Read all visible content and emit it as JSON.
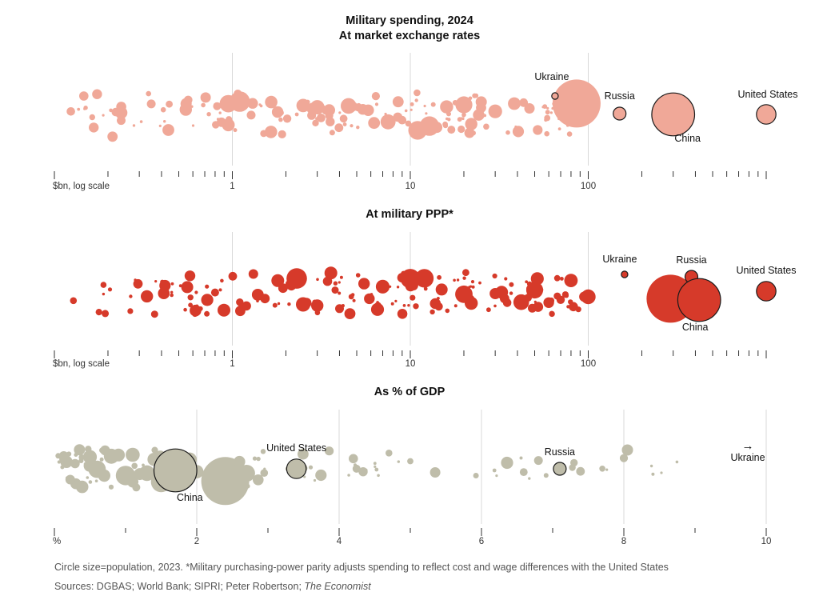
{
  "chart_data": [
    {
      "type": "scatter",
      "title": "Military spending, 2024",
      "subtitle": "At market exchange rates",
      "axis_label": "$bn, log scale",
      "scale": "log",
      "xlim": [
        0.1,
        1000
      ],
      "ticks": [
        {
          "value": 1,
          "label": "1"
        },
        {
          "value": 10,
          "label": "10"
        },
        {
          "value": 100,
          "label": "100"
        }
      ],
      "color": "#f0a898",
      "labelled": [
        {
          "name": "Ukraine",
          "value": 65,
          "population_m": 37
        },
        {
          "name": "Russia",
          "value": 150,
          "population_m": 144
        },
        {
          "name": "China",
          "value": 300,
          "population_m": 1410
        },
        {
          "name": "United States",
          "value": 1000,
          "population_m": 335
        }
      ],
      "others": [
        {
          "value": 86,
          "population_m": 1430
        },
        {
          "value": 1.1,
          "population_m": 220
        },
        {
          "value": 0.95,
          "population_m": 160
        },
        {
          "value": 12.8,
          "population_m": 200
        },
        {
          "value": 11,
          "population_m": 185
        },
        {
          "value": 20,
          "population_m": 150
        },
        {
          "value": 4.5,
          "population_m": 130
        },
        {
          "value": 7.5,
          "population_m": 120
        },
        {
          "value": 3.0,
          "population_m": 110
        },
        {
          "value": 30,
          "population_m": 100
        },
        {
          "value": 2.5,
          "population_m": 95
        },
        {
          "value": 16,
          "population_m": 90
        },
        {
          "value": 0.95,
          "population_m": 85
        },
        {
          "value": 22,
          "population_m": 80
        },
        {
          "value": 5.8,
          "population_m": 70
        },
        {
          "value": 0.55,
          "population_m": 66
        },
        {
          "value": 1.3,
          "population_m": 60
        },
        {
          "value": 25,
          "population_m": 55
        },
        {
          "value": 52,
          "population_m": 50
        },
        {
          "value": 8.5,
          "population_m": 45
        },
        {
          "value": 0.35,
          "population_m": 40
        },
        {
          "value": 9,
          "population_m": 38
        },
        {
          "value": 3.5,
          "population_m": 35
        },
        {
          "value": 17,
          "population_m": 33
        },
        {
          "value": 90,
          "population_m": 30
        }
      ]
    },
    {
      "type": "scatter",
      "title": "At military PPP*",
      "axis_label": "$bn, log scale",
      "scale": "log",
      "xlim": [
        0.1,
        1000
      ],
      "ticks": [
        {
          "value": 1,
          "label": "1"
        },
        {
          "value": 10,
          "label": "10"
        },
        {
          "value": 100,
          "label": "100"
        }
      ],
      "color": "#d63a2a",
      "labelled": [
        {
          "name": "Ukraine",
          "value": 160,
          "population_m": 37
        },
        {
          "name": "Russia",
          "value": 380,
          "population_m": 144
        },
        {
          "name": "United States",
          "value": 1000,
          "population_m": 335
        },
        {
          "name": "China",
          "value": 420,
          "population_m": 1410
        }
      ],
      "others": [
        {
          "value": 290,
          "population_m": 1430
        },
        {
          "value": 2.3,
          "population_m": 220
        },
        {
          "value": 10,
          "population_m": 200
        },
        {
          "value": 12,
          "population_m": 180
        },
        {
          "value": 20,
          "population_m": 160
        },
        {
          "value": 50,
          "population_m": 150
        },
        {
          "value": 42,
          "population_m": 130
        },
        {
          "value": 100,
          "population_m": 115
        },
        {
          "value": 2.5,
          "population_m": 110
        },
        {
          "value": 7,
          "population_m": 100
        },
        {
          "value": 80,
          "population_m": 95
        },
        {
          "value": 22,
          "population_m": 90
        },
        {
          "value": 1.8,
          "population_m": 85
        },
        {
          "value": 3,
          "population_m": 80
        },
        {
          "value": 15,
          "population_m": 75
        },
        {
          "value": 5.5,
          "population_m": 70
        },
        {
          "value": 30,
          "population_m": 65
        },
        {
          "value": 60,
          "population_m": 60
        },
        {
          "value": 95,
          "population_m": 55
        },
        {
          "value": 9,
          "population_m": 50
        },
        {
          "value": 1.2,
          "population_m": 45
        },
        {
          "value": 4,
          "population_m": 40
        },
        {
          "value": 35,
          "population_m": 38
        },
        {
          "value": 70,
          "population_m": 36
        },
        {
          "value": 0.8,
          "population_m": 34
        }
      ]
    },
    {
      "type": "scatter",
      "title": "As % of GDP",
      "axis_label": "%",
      "scale": "linear",
      "xlim": [
        0,
        10
      ],
      "ticks": [
        {
          "value": 2,
          "label": "2"
        },
        {
          "value": 4,
          "label": "4"
        },
        {
          "value": 6,
          "label": "6"
        },
        {
          "value": 8,
          "label": "8"
        },
        {
          "value": 10,
          "label": "10"
        }
      ],
      "color": "#bfbdaa",
      "labelled": [
        {
          "name": "United States",
          "value": 3.4,
          "population_m": 335
        },
        {
          "name": "China",
          "value": 1.7,
          "population_m": 1410
        },
        {
          "name": "Russia",
          "value": 7.1,
          "population_m": 144
        },
        {
          "name": "Ukraine",
          "value": 34,
          "population_m": 37,
          "offscale": true
        }
      ],
      "others": [
        {
          "value": 2.4,
          "population_m": 1430
        },
        {
          "value": 1.5,
          "population_m": 220
        },
        {
          "value": 1.0,
          "population_m": 200
        },
        {
          "value": 0.6,
          "population_m": 160
        },
        {
          "value": 2.7,
          "population_m": 150
        },
        {
          "value": 1.3,
          "population_m": 130
        },
        {
          "value": 0.8,
          "population_m": 120
        },
        {
          "value": 1.9,
          "population_m": 110
        },
        {
          "value": 1.1,
          "population_m": 105
        },
        {
          "value": 0.5,
          "population_m": 100
        },
        {
          "value": 2.0,
          "population_m": 95
        },
        {
          "value": 1.4,
          "population_m": 90
        },
        {
          "value": 0.9,
          "population_m": 85
        },
        {
          "value": 0.7,
          "population_m": 80
        },
        {
          "value": 1.2,
          "population_m": 75
        },
        {
          "value": 2.6,
          "population_m": 70
        },
        {
          "value": 4.2,
          "population_m": 45
        },
        {
          "value": 6.8,
          "population_m": 40
        },
        {
          "value": 8.0,
          "population_m": 35
        },
        {
          "value": 3.5,
          "population_m": 33
        },
        {
          "value": 7.3,
          "population_m": 30
        },
        {
          "value": 4.7,
          "population_m": 25
        },
        {
          "value": 5.0,
          "population_m": 20
        }
      ]
    }
  ],
  "footnote": "Circle size=population, 2023. *Military purchasing-power parity adjusts spending to reflect cost and wage differences with the United States",
  "sources_prefix": "Sources: DGBAS; World Bank; SIPRI; Peter Robertson; ",
  "sources_publication": "The Economist",
  "offscale_arrow": "→"
}
